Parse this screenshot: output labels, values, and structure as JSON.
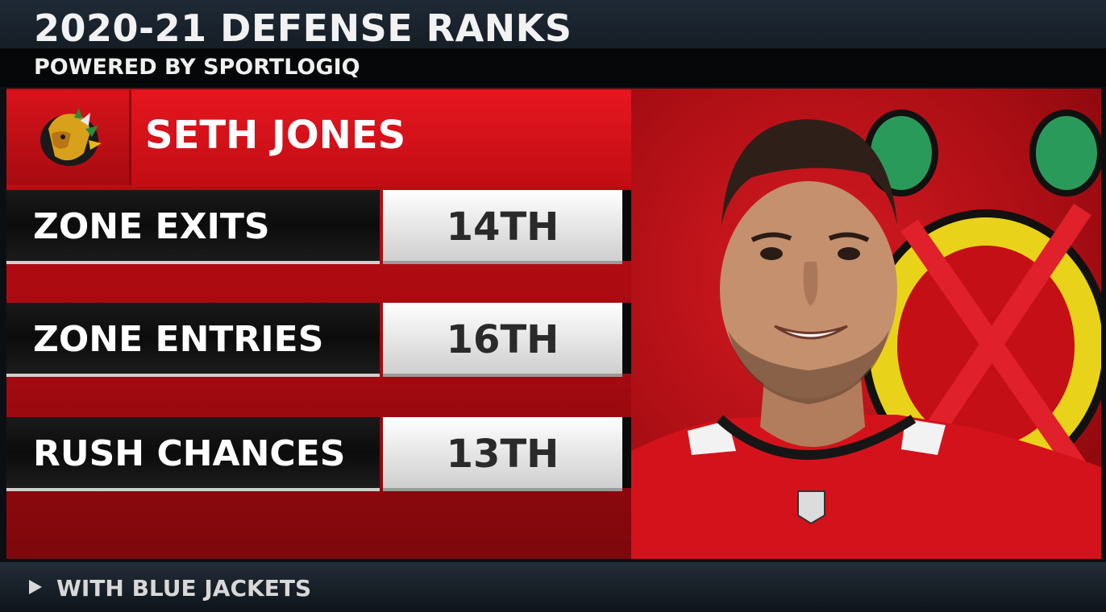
{
  "header": {
    "title": "2020-21 DEFENSE RANKS",
    "subtitle": "POWERED BY SPORTLOGIQ"
  },
  "player": {
    "name": "SETH JONES",
    "team_logo_icon": "blackhawks-logo-icon",
    "photo_icon": "player-headshot-icon"
  },
  "stats": [
    {
      "label": "ZONE EXITS",
      "value": "14TH"
    },
    {
      "label": "ZONE ENTRIES",
      "value": "16TH"
    },
    {
      "label": "RUSH CHANCES",
      "value": "13TH"
    }
  ],
  "footer": {
    "icon": "play-arrow-icon",
    "text": "WITH BLUE JACKETS"
  },
  "colors": {
    "team_red": "#c10d14",
    "dark_bar": "#0c0c0c",
    "value_box": "#e4e4e4"
  }
}
